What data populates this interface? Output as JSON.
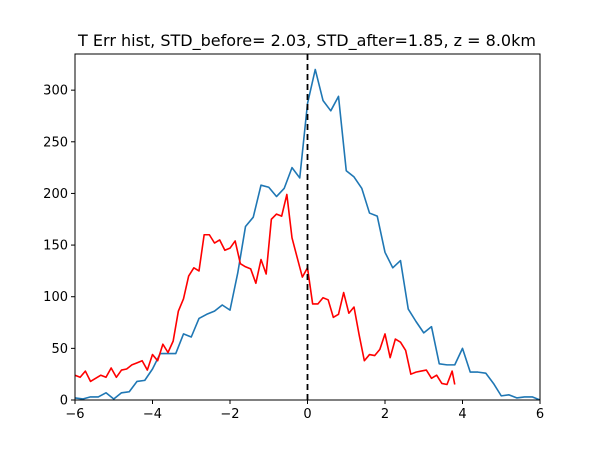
{
  "chart_data": {
    "type": "line",
    "title": "T Err hist, STD_before= 2.03, STD_after=1.85, z = 8.0km",
    "xlabel": "",
    "ylabel": "",
    "xlim": [
      -6,
      6
    ],
    "ylim": [
      0,
      335
    ],
    "xticks": [
      -6,
      -4,
      -2,
      0,
      2,
      4,
      6
    ],
    "xtick_labels": [
      "−6",
      "−4",
      "−2",
      "0",
      "2",
      "4",
      "6"
    ],
    "yticks": [
      0,
      50,
      100,
      150,
      200,
      250,
      300
    ],
    "ytick_labels": [
      "0",
      "50",
      "100",
      "150",
      "200",
      "250",
      "300"
    ],
    "grid": false,
    "legend": "none",
    "vline": {
      "x": 0,
      "style": "dashed",
      "color": "#000000"
    },
    "series": [
      {
        "color": "#1f77b4",
        "x": [
          -6.0,
          -5.8,
          -5.6,
          -5.4,
          -5.2,
          -5.0,
          -4.8,
          -4.6,
          -4.4,
          -4.2,
          -4.0,
          -3.8,
          -3.6,
          -3.4,
          -3.2,
          -3.0,
          -2.8,
          -2.6,
          -2.4,
          -2.2,
          -2.0,
          -1.8,
          -1.6,
          -1.4,
          -1.2,
          -1.0,
          -0.8,
          -0.6,
          -0.4,
          -0.2,
          0.0,
          0.2,
          0.4,
          0.6,
          0.8,
          1.0,
          1.2,
          1.4,
          1.6,
          1.8,
          2.0,
          2.2,
          2.4,
          2.6,
          2.8,
          3.0,
          3.2,
          3.4,
          3.6,
          3.8,
          4.0,
          4.2,
          4.4,
          4.6,
          4.8,
          5.0,
          5.2,
          5.4,
          5.6,
          5.8,
          6.0
        ],
        "y": [
          2,
          1,
          3,
          3,
          7,
          1,
          7,
          8,
          18,
          19,
          30,
          45,
          45,
          45,
          64,
          61,
          79,
          83,
          86,
          92,
          87,
          123,
          168,
          177,
          208,
          206,
          197,
          205,
          225,
          215,
          287,
          320,
          290,
          280,
          294,
          222,
          216,
          205,
          181,
          178,
          143,
          128,
          135,
          88,
          76,
          65,
          71,
          35,
          34,
          34,
          50,
          27,
          27,
          26,
          16,
          4,
          5,
          2,
          3,
          3,
          0
        ]
      },
      {
        "color": "#ff0000",
        "x": [
          -6.0,
          -5.867,
          -5.733,
          -5.6,
          -5.467,
          -5.333,
          -5.2,
          -5.067,
          -4.933,
          -4.8,
          -4.667,
          -4.533,
          -4.4,
          -4.267,
          -4.133,
          -4.0,
          -3.867,
          -3.733,
          -3.6,
          -3.467,
          -3.333,
          -3.2,
          -3.067,
          -2.933,
          -2.8,
          -2.667,
          -2.533,
          -2.4,
          -2.267,
          -2.133,
          -2.0,
          -1.867,
          -1.733,
          -1.6,
          -1.467,
          -1.333,
          -1.2,
          -1.067,
          -0.933,
          -0.8,
          -0.667,
          -0.533,
          -0.4,
          -0.267,
          -0.133,
          0.0,
          0.133,
          0.267,
          0.4,
          0.533,
          0.667,
          0.8,
          0.933,
          1.067,
          1.2,
          1.333,
          1.467,
          1.6,
          1.733,
          1.867,
          2.0,
          2.133,
          2.267,
          2.4,
          2.533,
          2.667,
          2.8,
          2.933,
          3.067,
          3.2,
          3.333,
          3.467,
          3.6,
          3.733,
          3.8
        ],
        "y": [
          24,
          22,
          28,
          18,
          21,
          24,
          22,
          31,
          22,
          29,
          30,
          34,
          36,
          38,
          29,
          44,
          38,
          54,
          46,
          57,
          86,
          98,
          120,
          128,
          125,
          160,
          160,
          152,
          155,
          145,
          147,
          154,
          132,
          129,
          127,
          113,
          136,
          122,
          175,
          180,
          178,
          199,
          157,
          138,
          119,
          128,
          93,
          93,
          99,
          97,
          80,
          83,
          104,
          84,
          90,
          63,
          38,
          44,
          43,
          49,
          64,
          41,
          59,
          56,
          48,
          25,
          27,
          28,
          29,
          21,
          24,
          16,
          15,
          28,
          15
        ]
      }
    ]
  }
}
